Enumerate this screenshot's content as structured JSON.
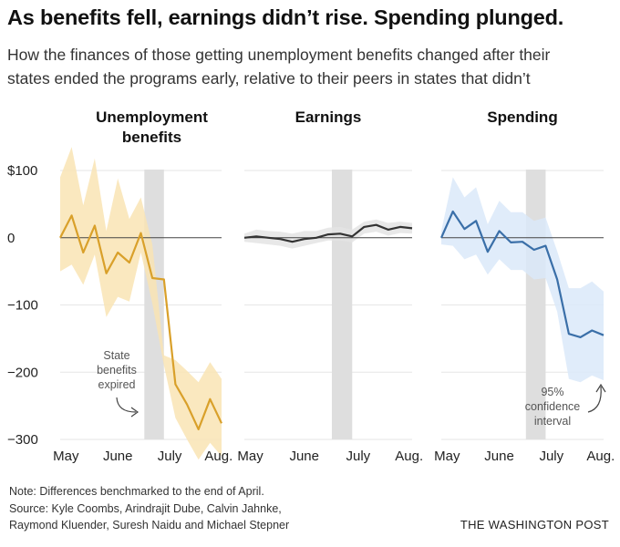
{
  "headline": "As benefits fell, earnings didn’t rise. Spending plunged.",
  "deck_lines": [
    "How the finances of those getting unemployment benefits changed after their",
    "states ended the programs early, relative to their peers in states that didn’t"
  ],
  "footer": {
    "lines": [
      "Note: Differences benchmarked to the end of April.",
      "Source: Kyle Coombs, Arindrajit Dube, Calvin Jahnke,",
      "Raymond Kluender, Suresh Naidu and Michael Stepner"
    ],
    "credit": "THE WASHINGTON POST"
  },
  "chart_data": {
    "type": "line",
    "y_ticks": [
      100,
      0,
      -100,
      -200,
      -300
    ],
    "y_tick_labels": [
      "$100",
      "0",
      "−100",
      "−200",
      "−300"
    ],
    "ylim": [
      -300,
      100
    ],
    "x_tick_labels": [
      "May",
      "June",
      "July",
      "Aug."
    ],
    "x_tick_weeks": [
      0.5,
      5,
      9.5,
      13.75
    ],
    "xlim_weeks": [
      0,
      14
    ],
    "expiry_band_weeks": [
      7.3,
      9.0
    ],
    "panels": [
      {
        "title_lines": [
          "Unemployment",
          "benefits"
        ],
        "color": "#d9a02a",
        "band_color": "#f9e4b4",
        "values": [
          0,
          33,
          -22,
          18,
          -53,
          -22,
          -37,
          7,
          -60,
          -62,
          -218,
          -248,
          -285,
          -240,
          -276
        ],
        "upper": [
          90,
          135,
          48,
          118,
          10,
          88,
          28,
          60,
          -10,
          -175,
          -182,
          -198,
          -215,
          -185,
          -210
        ],
        "lower": [
          -50,
          -40,
          -70,
          -25,
          -118,
          -88,
          -95,
          -22,
          -98,
          -190,
          -268,
          -300,
          -330,
          -305,
          -325
        ],
        "annotation_lines": [
          "State",
          "benefits",
          "expired"
        ]
      },
      {
        "title_lines": [
          "Earnings"
        ],
        "color": "#333333",
        "band_color": "#e4e4e4",
        "values": [
          0,
          2,
          0,
          -2,
          -6,
          -2,
          0,
          5,
          6,
          2,
          16,
          19,
          12,
          16,
          14
        ],
        "upper": [
          6,
          12,
          10,
          9,
          6,
          10,
          10,
          15,
          16,
          12,
          24,
          27,
          22,
          24,
          22
        ],
        "lower": [
          -6,
          -8,
          -10,
          -12,
          -16,
          -12,
          -8,
          -4,
          -4,
          -7,
          6,
          9,
          3,
          7,
          6
        ]
      },
      {
        "title_lines": [
          "Spending"
        ],
        "color": "#3a6fa8",
        "band_color": "#dbe9f9",
        "values": [
          0,
          39,
          13,
          25,
          -21,
          10,
          -7,
          -6,
          -18,
          -12,
          -62,
          -143,
          -148,
          -138,
          -145
        ],
        "upper": [
          10,
          90,
          60,
          75,
          20,
          55,
          38,
          38,
          25,
          30,
          -20,
          -75,
          -75,
          -65,
          -80
        ],
        "lower": [
          -10,
          -12,
          -32,
          -25,
          -55,
          -32,
          -48,
          -48,
          -62,
          -60,
          -110,
          -210,
          -215,
          -205,
          -212
        ],
        "annotation_lines": [
          "95%",
          "confidence",
          "interval"
        ]
      }
    ]
  }
}
